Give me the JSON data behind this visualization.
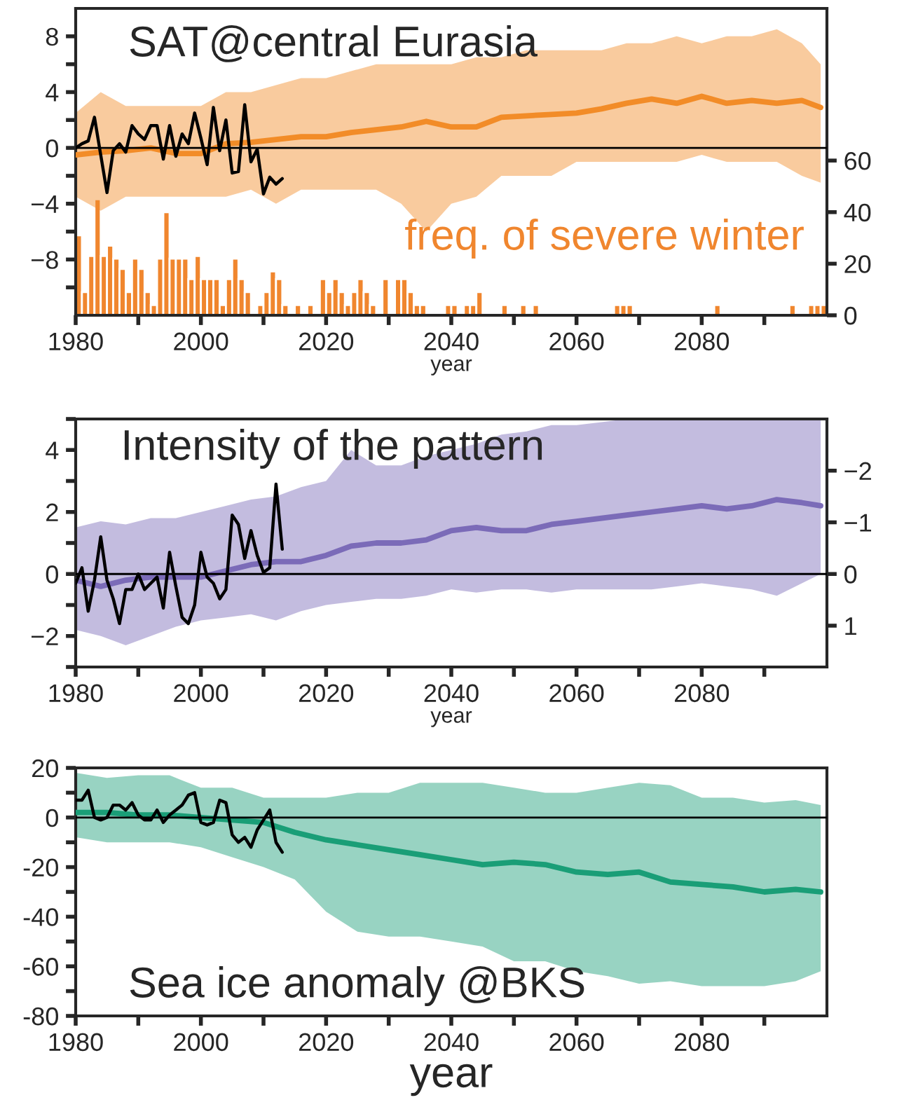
{
  "chart_data": [
    {
      "type": "line",
      "title": "SAT@central Eurasia",
      "xlabel": "year",
      "xlim": [
        1980,
        2100
      ],
      "xticks": [
        1980,
        {
          "value": 1990,
          "label": null
        },
        2000,
        {
          "value": 2010,
          "label": null
        },
        2020,
        {
          "value": 2030,
          "label": null
        },
        2040,
        {
          "value": 2050,
          "label": null
        },
        2060,
        {
          "value": 2070,
          "label": null
        },
        2080,
        {
          "value": 2090,
          "label": null
        }
      ],
      "ylim": [
        -12,
        10
      ],
      "yticks": [
        {
          "value": -10,
          "label": null
        },
        {
          "value": -8,
          "label": "−8"
        },
        {
          "value": -6,
          "label": null
        },
        {
          "value": -4,
          "label": "−4"
        },
        {
          "value": -2,
          "label": null
        },
        0,
        {
          "value": 2,
          "label": null
        },
        4,
        {
          "value": 6,
          "label": null
        },
        8
      ],
      "y2lim": [
        0,
        119
      ],
      "y2ticks": [
        0,
        20,
        40,
        60
      ],
      "ref_lines": [
        {
          "axis": "y",
          "value": 0,
          "color": "#000000"
        }
      ],
      "series": [
        {
          "type": "bar",
          "axis": "y2",
          "name": "freq. of severe winter",
          "color": "#f0862e",
          "x": [
            1980,
            1981,
            1982,
            1983,
            1984,
            1985,
            1986,
            1987,
            1988,
            1989,
            1990,
            1991,
            1992,
            1993,
            1994,
            1995,
            1996,
            1997,
            1998,
            1999,
            2000,
            2001,
            2002,
            2003,
            2004,
            2005,
            2006,
            2007,
            2009,
            2010,
            2011,
            2012,
            2013,
            2015,
            2017,
            2019,
            2020,
            2021,
            2022,
            2023,
            2024,
            2025,
            2026,
            2027,
            2029,
            2031,
            2032,
            2033,
            2034,
            2035,
            2039,
            2040,
            2042,
            2043,
            2044,
            2048,
            2051,
            2053,
            2066,
            2067,
            2068,
            2082,
            2094,
            2097,
            2098,
            2099
          ],
          "values": [
            31,
            9,
            23,
            45,
            23,
            27,
            22,
            18,
            9,
            22,
            18,
            9,
            4,
            22,
            40,
            22,
            22,
            22,
            14,
            23,
            14,
            14,
            14,
            4,
            14,
            22,
            14,
            9,
            4,
            9,
            17,
            14,
            4,
            4,
            4,
            14,
            9,
            14,
            9,
            4,
            9,
            14,
            9,
            4,
            14,
            14,
            14,
            9,
            4,
            4,
            4,
            4,
            4,
            4,
            9,
            4,
            4,
            4,
            4,
            4,
            4,
            4,
            4,
            4,
            4,
            4
          ]
        },
        {
          "color": "#f28c28",
          "x": [
            1980,
            1984,
            1988,
            1992,
            1996,
            2000,
            2004,
            2008,
            2012,
            2016,
            2020,
            2024,
            2028,
            2032,
            2036,
            2040,
            2044,
            2048,
            2052,
            2056,
            2060,
            2064,
            2068,
            2072,
            2076,
            2080,
            2084,
            2088,
            2092,
            2096,
            2099
          ],
          "values": [
            -0.5,
            -0.3,
            -0.2,
            0.0,
            -0.4,
            -0.4,
            0.3,
            0.4,
            0.6,
            0.8,
            0.8,
            1.1,
            1.3,
            1.5,
            1.9,
            1.5,
            1.5,
            2.2,
            2.3,
            2.4,
            2.5,
            2.8,
            3.2,
            3.5,
            3.2,
            3.7,
            3.2,
            3.4,
            3.2,
            3.4,
            2.9
          ],
          "lower": [
            -3.5,
            -4.5,
            -3.5,
            -3.5,
            -3.5,
            -3.5,
            -3.5,
            -3,
            -4,
            -3,
            -3,
            -3,
            -3,
            -4,
            -6,
            -4,
            -3.5,
            -2,
            -2,
            -2,
            -1,
            -1,
            -1,
            -1,
            -1,
            -0.5,
            -1,
            -1,
            -1,
            -2,
            -2.5
          ],
          "upper": [
            2.5,
            4,
            3,
            3,
            3,
            3,
            4,
            4,
            4.5,
            5,
            5,
            5.5,
            6,
            6,
            6,
            6,
            6.5,
            6.5,
            7,
            7,
            7,
            7,
            7.5,
            7.5,
            8,
            7.5,
            8,
            8,
            8.5,
            7.5,
            6
          ]
        },
        {
          "type": "line",
          "color": "#000000",
          "x": [
            1980,
            1981,
            1982,
            1983,
            1984,
            1985,
            1986,
            1987,
            1988,
            1989,
            1990,
            1991,
            1992,
            1993,
            1994,
            1995,
            1996,
            1997,
            1998,
            1999,
            2000,
            2001,
            2002,
            2003,
            2004,
            2005,
            2006,
            2007,
            2008,
            2009,
            2010,
            2011,
            2012,
            2013
          ],
          "values": [
            0,
            0.3,
            0.5,
            2.2,
            -0.5,
            -3.2,
            -0.2,
            0.3,
            -0.3,
            1.6,
            1.0,
            0.6,
            1.6,
            1.6,
            -0.8,
            1.6,
            -0.6,
            1.0,
            0.3,
            2.5,
            0.7,
            -1.2,
            2.9,
            -0.2,
            2.0,
            -1.8,
            -1.7,
            3.1,
            -1.0,
            -0.1,
            -3.3,
            -2.1,
            -2.6,
            -2.2
          ]
        }
      ]
    },
    {
      "type": "line",
      "title": "Intensity of the pattern",
      "xlabel": "year",
      "xlim": [
        1980,
        2100
      ],
      "xticks": [
        1980,
        {
          "value": 1990,
          "label": null
        },
        2000,
        {
          "value": 2010,
          "label": null
        },
        2020,
        {
          "value": 2030,
          "label": null
        },
        2040,
        {
          "value": 2050,
          "label": null
        },
        2060,
        {
          "value": 2070,
          "label": null
        },
        2080,
        {
          "value": 2090,
          "label": null
        }
      ],
      "ylim": [
        -3,
        5
      ],
      "yticks": [
        {
          "value": -3,
          "label": null
        },
        {
          "value": -2,
          "label": "−2"
        },
        {
          "value": -1,
          "label": null
        },
        0,
        {
          "value": 1,
          "label": null
        },
        2,
        {
          "value": 3,
          "label": null
        },
        4,
        {
          "value": 5,
          "label": null
        }
      ],
      "y2lim": [
        1.8,
        -3.0
      ],
      "y2ticks": [
        {
          "value": -2,
          "label": "−2"
        },
        {
          "value": -1,
          "label": "−1"
        },
        0,
        1
      ],
      "ref_lines": [
        {
          "axis": "y",
          "value": 0,
          "color": "#000000"
        }
      ],
      "series": [
        {
          "color": "#7b6bb8",
          "x": [
            1980,
            1984,
            1988,
            1992,
            1996,
            2000,
            2004,
            2008,
            2012,
            2016,
            2020,
            2024,
            2028,
            2032,
            2036,
            2040,
            2044,
            2048,
            2052,
            2056,
            2060,
            2064,
            2068,
            2072,
            2076,
            2080,
            2084,
            2088,
            2092,
            2096,
            2099
          ],
          "values": [
            -0.2,
            -0.4,
            -0.2,
            -0.1,
            -0.1,
            -0.1,
            0.1,
            0.3,
            0.4,
            0.4,
            0.6,
            0.9,
            1.0,
            1.0,
            1.1,
            1.4,
            1.5,
            1.4,
            1.4,
            1.6,
            1.7,
            1.8,
            1.9,
            2.0,
            2.1,
            2.2,
            2.1,
            2.2,
            2.4,
            2.3,
            2.2
          ],
          "lower": [
            -1.8,
            -2.0,
            -2.3,
            -2.0,
            -1.7,
            -1.5,
            -1.4,
            -1.3,
            -1.5,
            -1.2,
            -1.0,
            -0.9,
            -0.8,
            -0.8,
            -0.7,
            -0.5,
            -0.6,
            -0.5,
            -0.5,
            -0.6,
            -0.5,
            -0.5,
            -0.5,
            -0.5,
            -0.4,
            -0.3,
            -0.4,
            -0.5,
            -0.7,
            -0.3,
            0
          ],
          "upper": [
            1.5,
            1.7,
            1.6,
            1.8,
            1.8,
            2.0,
            2.2,
            2.4,
            2.5,
            2.8,
            3.0,
            4.0,
            3.5,
            3.5,
            3.8,
            4.0,
            4.2,
            4.5,
            4.6,
            4.8,
            4.8,
            4.9,
            5,
            5,
            5,
            5,
            5,
            5,
            5,
            5,
            5
          ]
        },
        {
          "type": "line",
          "color": "#000000",
          "x": [
            1980,
            1981,
            1982,
            1983,
            1984,
            1985,
            1986,
            1987,
            1988,
            1989,
            1990,
            1991,
            1992,
            1993,
            1994,
            1995,
            1996,
            1997,
            1998,
            1999,
            2000,
            2001,
            2002,
            2003,
            2004,
            2005,
            2006,
            2007,
            2008,
            2009,
            2010,
            2011,
            2012,
            2013
          ],
          "values": [
            -0.3,
            0.2,
            -1.2,
            -0.2,
            1.2,
            -0.2,
            -0.8,
            -1.6,
            -0.5,
            -0.5,
            0.0,
            -0.5,
            -0.3,
            -0.1,
            -1.1,
            0.7,
            -0.4,
            -1.4,
            -1.6,
            -1.0,
            0.7,
            -0.1,
            -0.3,
            -0.8,
            -0.5,
            1.9,
            1.6,
            0.5,
            1.4,
            0.6,
            0.05,
            0.2,
            2.9,
            0.8
          ]
        }
      ]
    },
    {
      "type": "line",
      "title": "Sea ice anomaly @BKS",
      "xlabel": "year",
      "xlim": [
        1980,
        2100
      ],
      "xticks": [
        1980,
        {
          "value": 1990,
          "label": null
        },
        2000,
        {
          "value": 2010,
          "label": null
        },
        2020,
        {
          "value": 2030,
          "label": null
        },
        2040,
        {
          "value": 2050,
          "label": null
        },
        2060,
        {
          "value": 2070,
          "label": null
        },
        2080,
        {
          "value": 2090,
          "label": null
        }
      ],
      "ylim": [
        -80,
        20
      ],
      "yticks": [
        {
          "value": -80,
          "label": "-80"
        },
        {
          "value": -70,
          "label": null
        },
        {
          "value": -60,
          "label": "-60"
        },
        {
          "value": -50,
          "label": null
        },
        {
          "value": -40,
          "label": "-40"
        },
        {
          "value": -30,
          "label": null
        },
        {
          "value": -20,
          "label": "-20"
        },
        {
          "value": -10,
          "label": null
        },
        0,
        {
          "value": 10,
          "label": null
        },
        20
      ],
      "ref_lines": [
        {
          "axis": "y",
          "value": 0,
          "color": "#000000"
        }
      ],
      "series": [
        {
          "color": "#1a9e77",
          "x": [
            1980,
            1985,
            1990,
            1995,
            2000,
            2005,
            2010,
            2015,
            2020,
            2025,
            2030,
            2035,
            2040,
            2045,
            2050,
            2055,
            2060,
            2065,
            2070,
            2075,
            2080,
            2085,
            2090,
            2095,
            2099
          ],
          "values": [
            2,
            2,
            1,
            1,
            0,
            -1,
            -2,
            -6,
            -9,
            -11,
            -13,
            -15,
            -17,
            -19,
            -18,
            -19,
            -22,
            -23,
            -22,
            -26,
            -27,
            -28,
            -30,
            -29,
            -30
          ],
          "lower": [
            -8,
            -10,
            -10,
            -10,
            -12,
            -16,
            -20,
            -25,
            -38,
            -46,
            -48,
            -48,
            -50,
            -52,
            -58,
            -58,
            -62,
            -64,
            -67,
            -66,
            -68,
            -68,
            -68,
            -66,
            -62
          ],
          "upper": [
            18,
            16,
            17,
            17,
            12,
            12,
            8,
            8,
            8,
            10,
            10,
            14,
            14,
            14,
            12,
            10,
            10,
            12,
            14,
            13,
            8,
            8,
            6,
            7,
            5
          ]
        },
        {
          "type": "line",
          "color": "#000000",
          "x": [
            1980,
            1981,
            1982,
            1983,
            1984,
            1985,
            1986,
            1987,
            1988,
            1989,
            1990,
            1991,
            1992,
            1993,
            1994,
            1995,
            1996,
            1997,
            1998,
            1999,
            2000,
            2001,
            2002,
            2003,
            2004,
            2005,
            2006,
            2007,
            2008,
            2009,
            2010,
            2011,
            2012,
            2013
          ],
          "values": [
            7,
            7,
            11,
            0,
            -1,
            0,
            5,
            5,
            3,
            6,
            1,
            -1,
            -1,
            3,
            -2,
            1,
            3,
            5,
            9,
            10,
            -2,
            -3,
            -2,
            7,
            6,
            -7,
            -10,
            -8,
            -12,
            -5,
            -1,
            3,
            -10,
            -14
          ]
        }
      ]
    }
  ]
}
